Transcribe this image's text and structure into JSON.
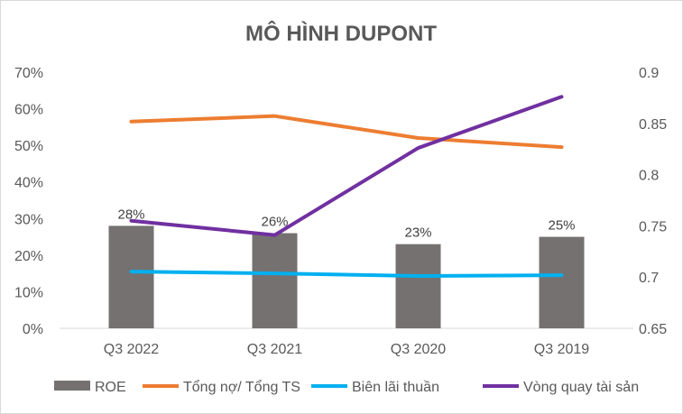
{
  "chart_data": {
    "type": "bar",
    "title": "MÔ HÌNH DUPONT",
    "categories": [
      "Q3 2022",
      "Q3 2021",
      "Q3 2020",
      "Q3 2019"
    ],
    "y_left": {
      "ticks": [
        "0%",
        "10%",
        "20%",
        "30%",
        "40%",
        "50%",
        "60%",
        "70%"
      ],
      "range": [
        0,
        70
      ]
    },
    "y_right": {
      "ticks": [
        "0.65",
        "0.7",
        "0.75",
        "0.8",
        "0.85",
        "0.9"
      ],
      "range": [
        0.65,
        0.9
      ]
    },
    "grid": false,
    "legend_position": "bottom",
    "series": [
      {
        "name": "ROE",
        "type": "bar",
        "axis": "left",
        "color": "#767171",
        "values": [
          28,
          26,
          23,
          25
        ],
        "labels": [
          "28%",
          "26%",
          "23%",
          "25%"
        ]
      },
      {
        "name": "Tổng nợ/ Tổng TS",
        "type": "line",
        "axis": "left",
        "color": "#ED7D31",
        "values": [
          56.5,
          58,
          52,
          49.5
        ]
      },
      {
        "name": "Biên lãi thuần",
        "type": "line",
        "axis": "left",
        "color": "#00B0F0",
        "values": [
          15.5,
          15,
          14.3,
          14.5
        ]
      },
      {
        "name": "Vòng quay tài sản",
        "type": "line",
        "axis": "right",
        "color": "#7030A0",
        "values": [
          0.755,
          0.741,
          0.826,
          0.876
        ]
      }
    ]
  }
}
